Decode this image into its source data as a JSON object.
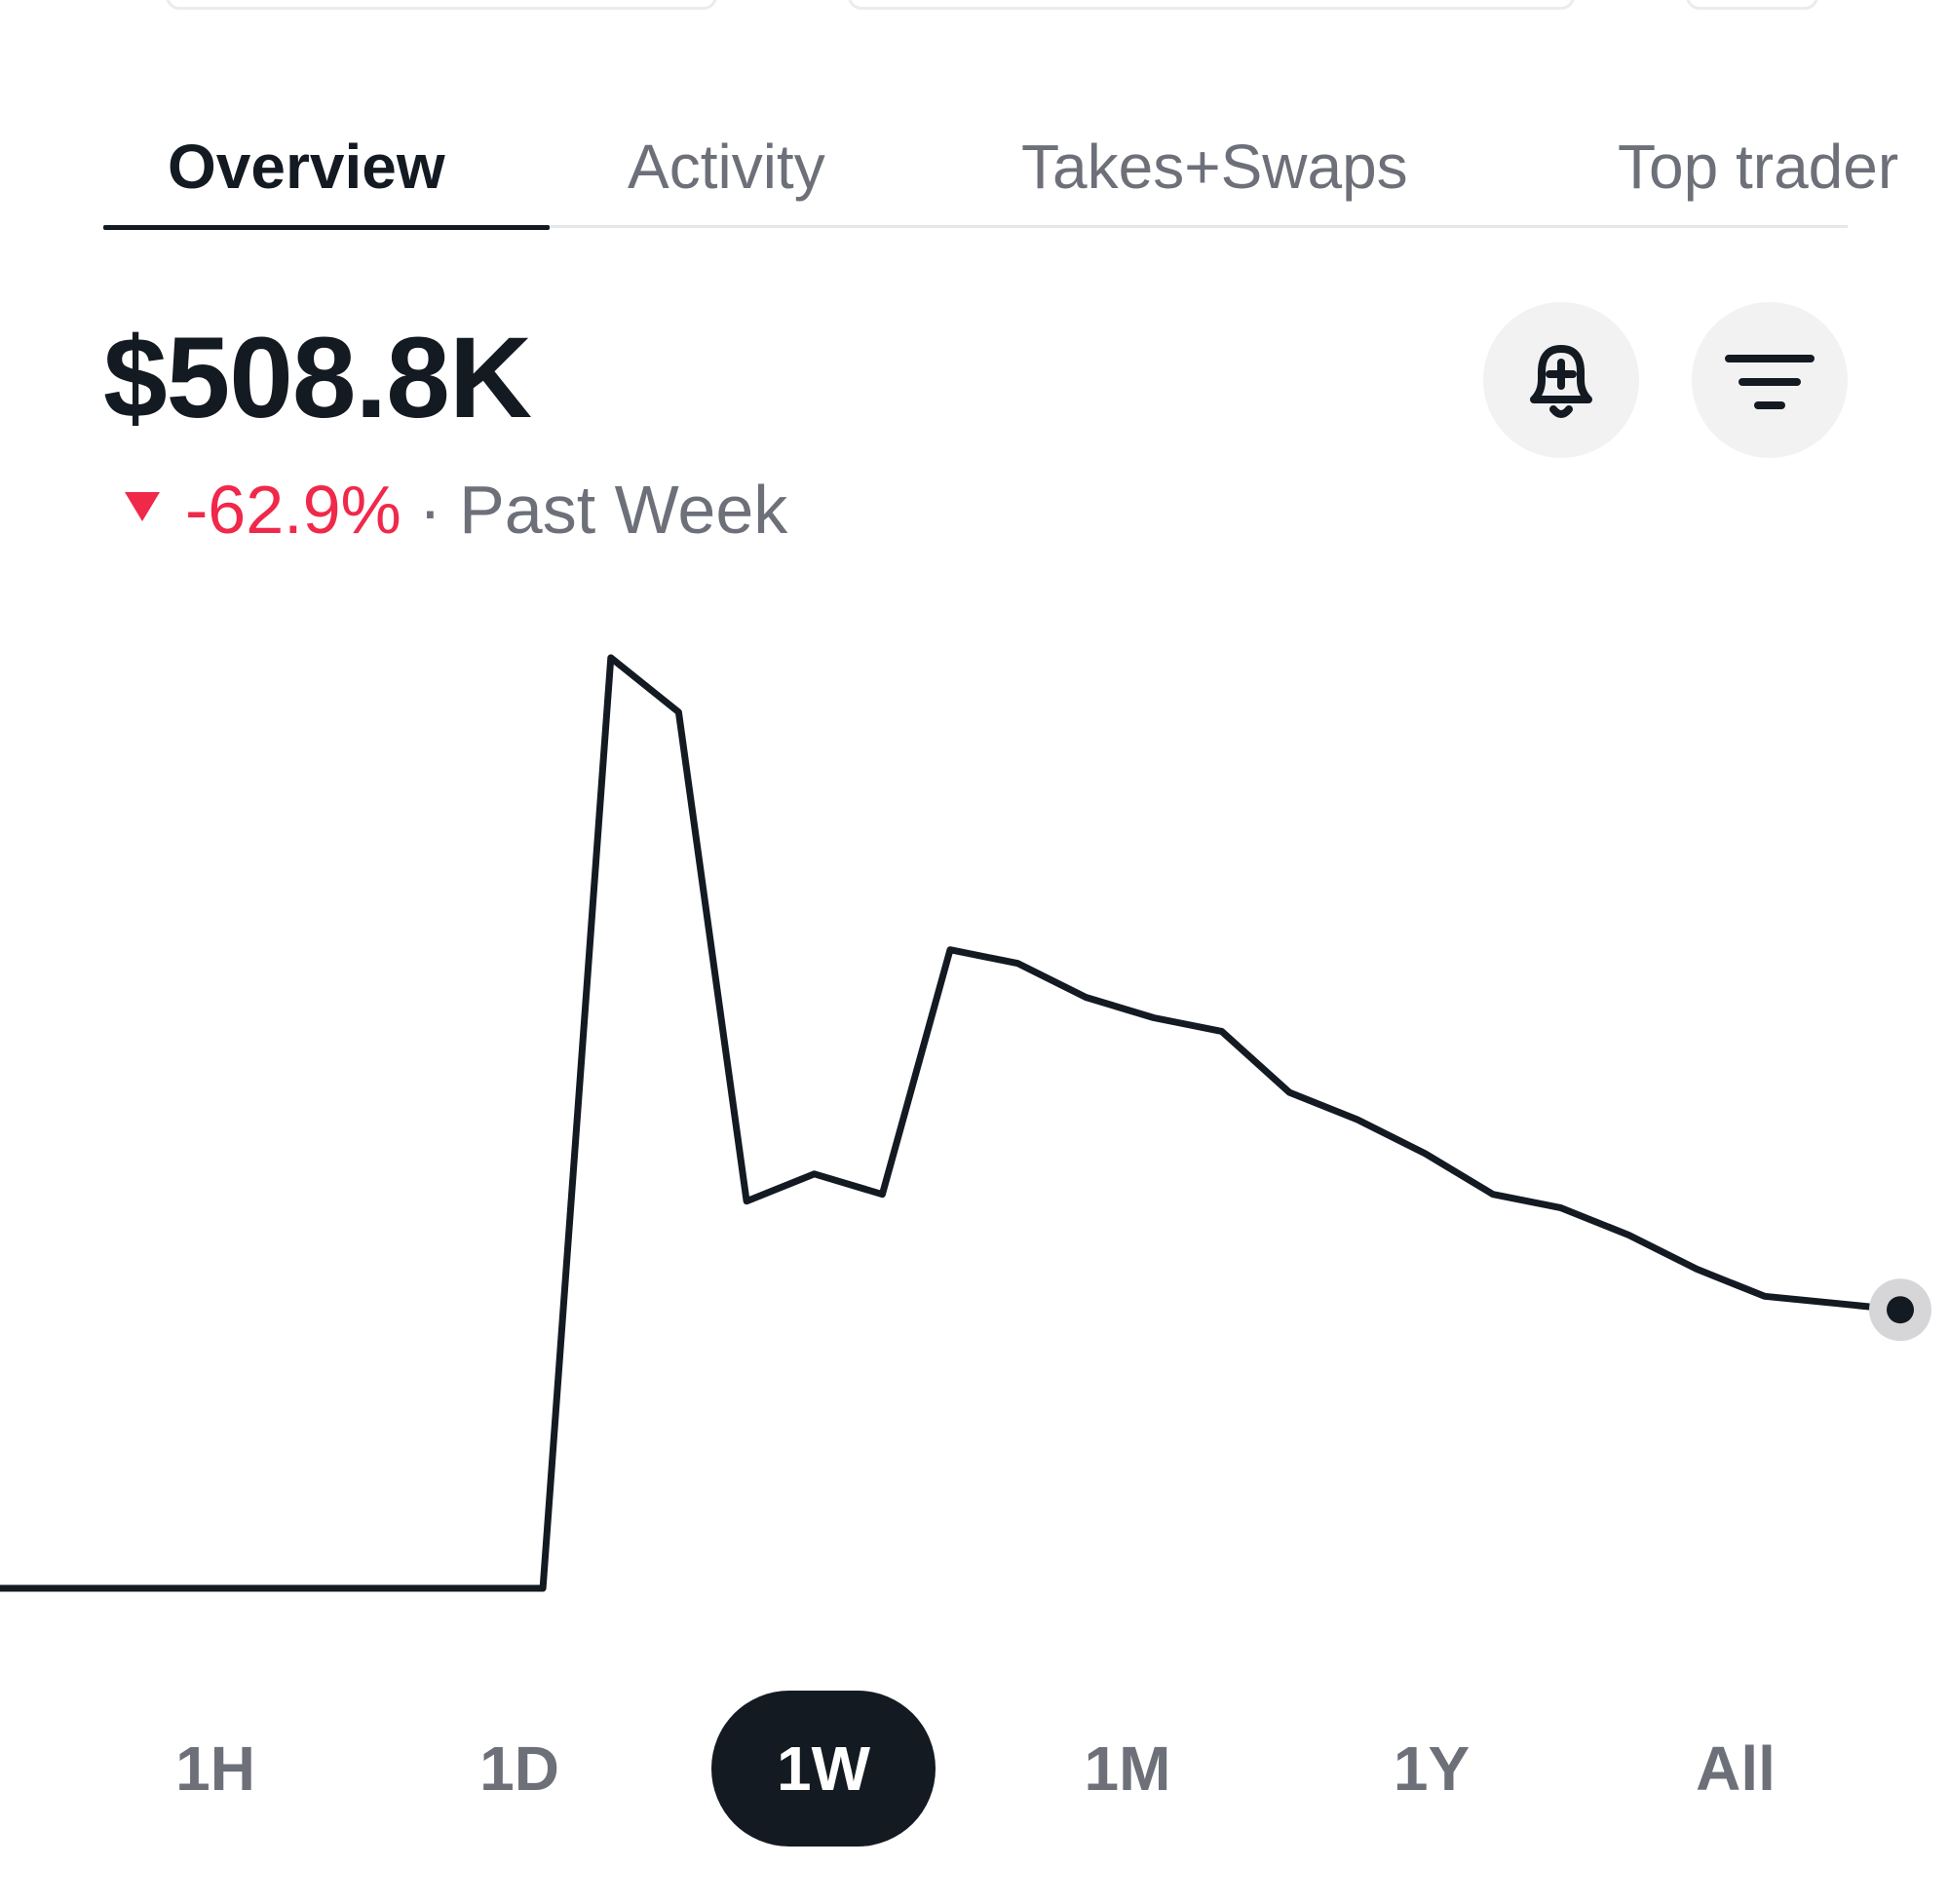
{
  "tabs": [
    {
      "label": "Overview",
      "active": true
    },
    {
      "label": "Activity",
      "active": false
    },
    {
      "label": "Takes+Swaps",
      "active": false
    },
    {
      "label": "Top trader",
      "active": false
    }
  ],
  "summary": {
    "value": "$508.8K",
    "change": "-62.9%",
    "separator": "·",
    "period": "Past Week",
    "direction": "down",
    "down_color": "#f0284a"
  },
  "actions": {
    "alert_icon": "bell-plus-icon",
    "filter_icon": "filter-icon"
  },
  "ranges": [
    "1H",
    "1D",
    "1W",
    "1M",
    "1Y",
    "All"
  ],
  "selected_range": "1W",
  "chart_data": {
    "type": "line",
    "title": "",
    "xlabel": "",
    "ylabel": "",
    "x": [
      0,
      0.5,
      1,
      1.5,
      2,
      2.5,
      3,
      3.5,
      4,
      4.5,
      5,
      5.5,
      6,
      6.5,
      7,
      7.5,
      8,
      8.5,
      9,
      9.5,
      10,
      10.5,
      11,
      11.5,
      12,
      12.5,
      13,
      13.5,
      14
    ],
    "values": [
      0,
      0,
      0,
      0,
      0,
      0,
      0,
      0,
      0,
      1370,
      1290,
      570,
      610,
      580,
      940,
      920,
      870,
      840,
      820,
      730,
      690,
      640,
      580,
      560,
      520,
      470,
      430,
      420,
      410
    ],
    "line_color": "#141a22",
    "grid": false,
    "axes_visible": false,
    "end_marker": true
  }
}
